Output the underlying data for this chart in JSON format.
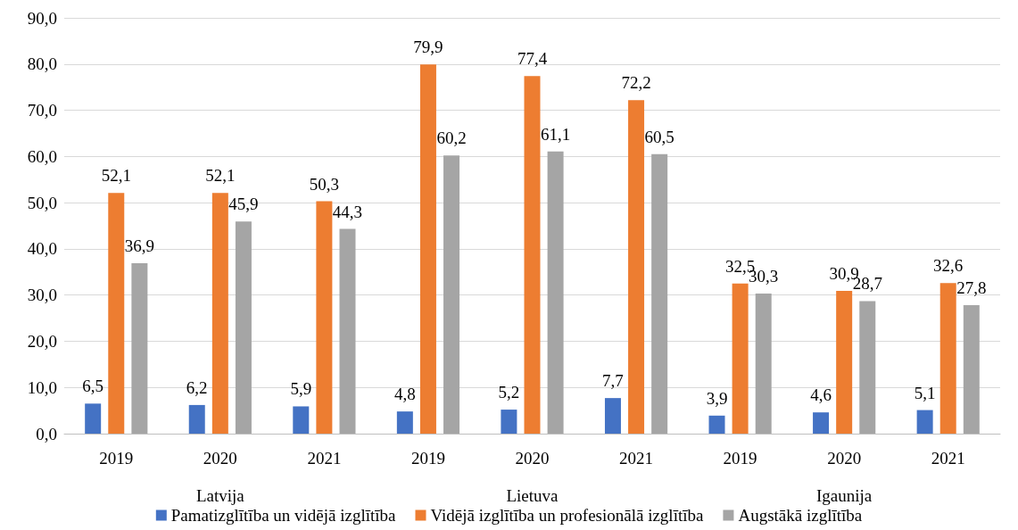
{
  "chart_data": {
    "type": "bar",
    "categories": [
      "2019",
      "2020",
      "2021",
      "2019",
      "2020",
      "2021",
      "2019",
      "2020",
      "2021"
    ],
    "annotations": [
      "Latvija",
      "Lietuva",
      "Igaunija"
    ],
    "series": [
      {
        "name": "Pamatizglītība un vidējā izglītība",
        "color": "#4472c4",
        "values": [
          6.5,
          6.2,
          5.9,
          4.8,
          5.2,
          7.7,
          3.9,
          4.6,
          5.1
        ],
        "value_labels": [
          "6,5",
          "6,2",
          "5,9",
          "4,8",
          "5,2",
          "7,7",
          "3,9",
          "4,6",
          "5,1"
        ]
      },
      {
        "name": "Vidējā izglītība un profesionālā izglītība",
        "color": "#ed7d31",
        "values": [
          52.1,
          52.1,
          50.3,
          79.9,
          77.4,
          72.2,
          32.5,
          30.9,
          32.6
        ],
        "value_labels": [
          "52,1",
          "52,1",
          "50,3",
          "79,9",
          "77,4",
          "72,2",
          "32,5",
          "30,9",
          "32,6"
        ]
      },
      {
        "name": "Augstākā izglītība",
        "color": "#a5a5a5",
        "values": [
          36.9,
          45.9,
          44.3,
          60.2,
          61.1,
          60.5,
          30.3,
          28.7,
          27.8
        ],
        "value_labels": [
          "36,9",
          "45,9",
          "44,3",
          "60,2",
          "61,1",
          "60,5",
          "30,3",
          "28,7",
          "27,8"
        ]
      }
    ],
    "ylim": [
      0,
      90
    ],
    "yticks": [
      {
        "value": 0,
        "label": "0,0"
      },
      {
        "value": 10,
        "label": "10,0"
      },
      {
        "value": 20,
        "label": "20,0"
      },
      {
        "value": 30,
        "label": "30,0"
      },
      {
        "value": 40,
        "label": "40,0"
      },
      {
        "value": 50,
        "label": "50,0"
      },
      {
        "value": 60,
        "label": "60,0"
      },
      {
        "value": 70,
        "label": "70,0"
      },
      {
        "value": 80,
        "label": "80,0"
      },
      {
        "value": 90,
        "label": "90,0"
      }
    ],
    "grid": "y",
    "legend": "bottom"
  }
}
